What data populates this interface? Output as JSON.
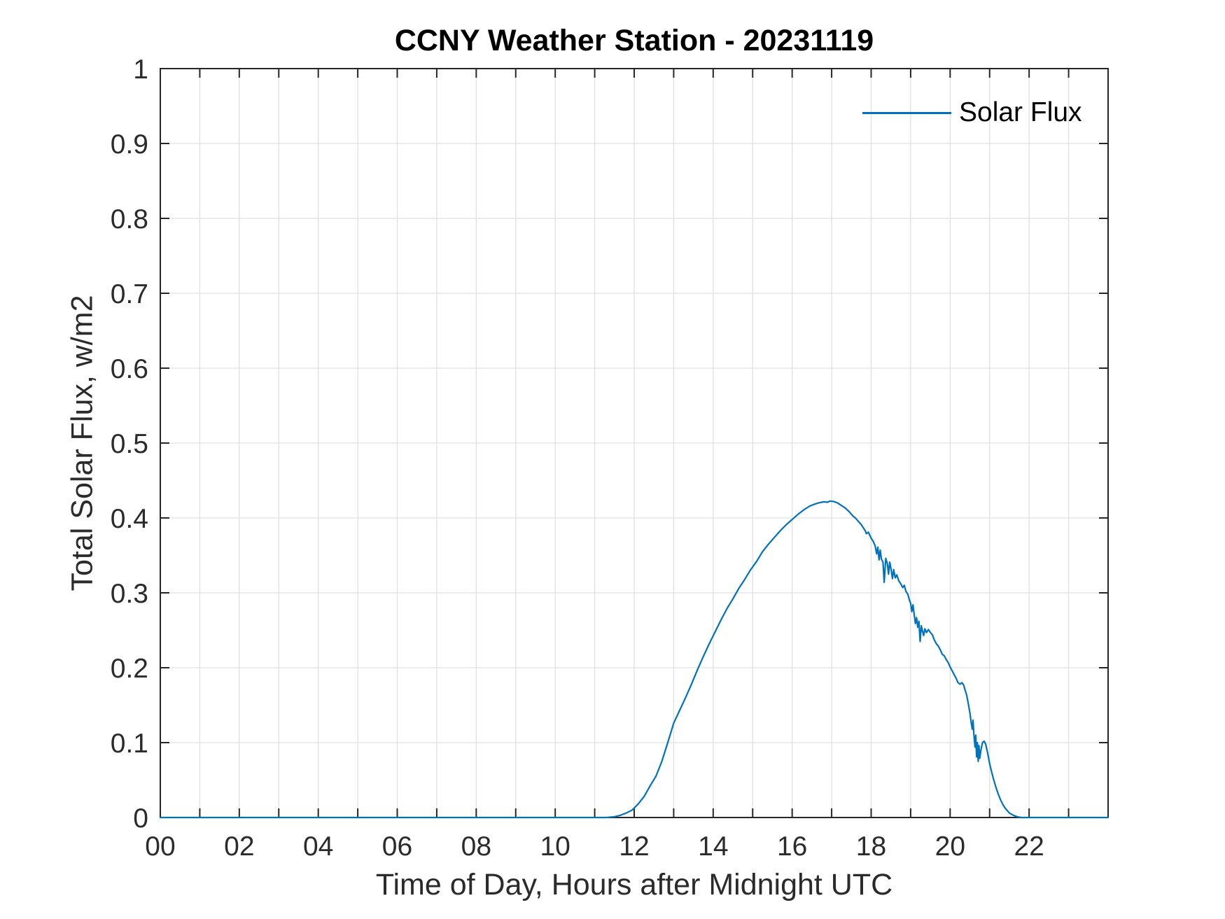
{
  "figure": {
    "background": "#ffffff"
  },
  "chart_data": {
    "type": "line",
    "title": "CCNY Weather Station - 20231119",
    "xlabel": "Time of Day, Hours after Midnight UTC",
    "ylabel": "Total Solar Flux, w/m2",
    "xlim": [
      0,
      24
    ],
    "ylim": [
      0,
      1
    ],
    "grid": true,
    "grid_color": "#e0e0e0",
    "axis_color": "#262626",
    "tick_label_color": "#2b2b2b",
    "line_color": "#0072BD",
    "line_width": 2.2,
    "legend": {
      "position": "northeast",
      "box": false,
      "entries": [
        {
          "label": "Solar Flux",
          "color": "#0072BD"
        }
      ]
    },
    "xtick_positions": [
      0,
      1,
      2,
      3,
      4,
      5,
      6,
      7,
      8,
      9,
      10,
      11,
      12,
      13,
      14,
      15,
      16,
      17,
      18,
      19,
      20,
      21,
      22,
      23
    ],
    "xtick_labels": [
      "00",
      "",
      "02",
      "",
      "04",
      "",
      "06",
      "",
      "08",
      "",
      "10",
      "",
      "12",
      "",
      "14",
      "",
      "16",
      "",
      "18",
      "",
      "20",
      "",
      "22",
      ""
    ],
    "ytick_positions": [
      0,
      0.1,
      0.2,
      0.3,
      0.4,
      0.5,
      0.6,
      0.7,
      0.8,
      0.9,
      1
    ],
    "ytick_labels": [
      "0",
      "0.1",
      "0.2",
      "0.3",
      "0.4",
      "0.5",
      "0.6",
      "0.7",
      "0.8",
      "0.9",
      "1"
    ],
    "series": [
      {
        "name": "Solar Flux",
        "points": [
          [
            0,
            0
          ],
          [
            1,
            0
          ],
          [
            2,
            0
          ],
          [
            3,
            0
          ],
          [
            4,
            0
          ],
          [
            5,
            0
          ],
          [
            6,
            0
          ],
          [
            7,
            0
          ],
          [
            8,
            0
          ],
          [
            9,
            0
          ],
          [
            10,
            0
          ],
          [
            10.5,
            0
          ],
          [
            11,
            0
          ],
          [
            11.3,
            0
          ],
          [
            11.5,
            0.001
          ],
          [
            11.65,
            0.003
          ],
          [
            11.8,
            0.006
          ],
          [
            11.95,
            0.01
          ],
          [
            12.1,
            0.018
          ],
          [
            12.25,
            0.028
          ],
          [
            12.4,
            0.042
          ],
          [
            12.55,
            0.055
          ],
          [
            12.7,
            0.075
          ],
          [
            12.85,
            0.1
          ],
          [
            13,
            0.126
          ],
          [
            13.15,
            0.143
          ],
          [
            13.3,
            0.16
          ],
          [
            13.45,
            0.178
          ],
          [
            13.6,
            0.197
          ],
          [
            13.75,
            0.215
          ],
          [
            13.9,
            0.232
          ],
          [
            14.05,
            0.248
          ],
          [
            14.2,
            0.264
          ],
          [
            14.35,
            0.279
          ],
          [
            14.5,
            0.292
          ],
          [
            14.65,
            0.306
          ],
          [
            14.8,
            0.318
          ],
          [
            14.95,
            0.331
          ],
          [
            15.1,
            0.342
          ],
          [
            15.25,
            0.355
          ],
          [
            15.4,
            0.365
          ],
          [
            15.55,
            0.374
          ],
          [
            15.7,
            0.383
          ],
          [
            15.85,
            0.391
          ],
          [
            16,
            0.398
          ],
          [
            16.15,
            0.405
          ],
          [
            16.3,
            0.411
          ],
          [
            16.45,
            0.416
          ],
          [
            16.6,
            0.419
          ],
          [
            16.7,
            0.4205
          ],
          [
            16.8,
            0.4215
          ],
          [
            16.9,
            0.421
          ],
          [
            16.95,
            0.4225
          ],
          [
            17.05,
            0.422
          ],
          [
            17.15,
            0.42
          ],
          [
            17.25,
            0.4165
          ],
          [
            17.35,
            0.413
          ],
          [
            17.45,
            0.408
          ],
          [
            17.55,
            0.402
          ],
          [
            17.6,
            0.4
          ],
          [
            17.65,
            0.397
          ],
          [
            17.75,
            0.391
          ],
          [
            17.85,
            0.383
          ],
          [
            17.88,
            0.379
          ],
          [
            17.93,
            0.381
          ],
          [
            18,
            0.373
          ],
          [
            18.05,
            0.369
          ],
          [
            18.1,
            0.363
          ],
          [
            18.14,
            0.352
          ],
          [
            18.17,
            0.361
          ],
          [
            18.2,
            0.344
          ],
          [
            18.23,
            0.357
          ],
          [
            18.26,
            0.345
          ],
          [
            18.3,
            0.341
          ],
          [
            18.33,
            0.314
          ],
          [
            18.37,
            0.346
          ],
          [
            18.41,
            0.339
          ],
          [
            18.44,
            0.325
          ],
          [
            18.47,
            0.341
          ],
          [
            18.5,
            0.333
          ],
          [
            18.54,
            0.319
          ],
          [
            18.57,
            0.331
          ],
          [
            18.61,
            0.32
          ],
          [
            18.65,
            0.324
          ],
          [
            18.7,
            0.316
          ],
          [
            18.75,
            0.312
          ],
          [
            18.8,
            0.307
          ],
          [
            18.84,
            0.31
          ],
          [
            18.88,
            0.302
          ],
          [
            18.93,
            0.298
          ],
          [
            18.97,
            0.29
          ],
          [
            19,
            0.286
          ],
          [
            19.03,
            0.275
          ],
          [
            19.06,
            0.284
          ],
          [
            19.09,
            0.271
          ],
          [
            19.12,
            0.259
          ],
          [
            19.15,
            0.267
          ],
          [
            19.18,
            0.254
          ],
          [
            19.21,
            0.262
          ],
          [
            19.24,
            0.235
          ],
          [
            19.27,
            0.256
          ],
          [
            19.3,
            0.249
          ],
          [
            19.33,
            0.243
          ],
          [
            19.36,
            0.252
          ],
          [
            19.4,
            0.247
          ],
          [
            19.45,
            0.251
          ],
          [
            19.5,
            0.247
          ],
          [
            19.55,
            0.244
          ],
          [
            19.6,
            0.237
          ],
          [
            19.65,
            0.232
          ],
          [
            19.7,
            0.229
          ],
          [
            19.75,
            0.224
          ],
          [
            19.8,
            0.218
          ],
          [
            19.85,
            0.216
          ],
          [
            19.9,
            0.211
          ],
          [
            19.95,
            0.207
          ],
          [
            20,
            0.201
          ],
          [
            20.05,
            0.196
          ],
          [
            20.1,
            0.191
          ],
          [
            20.15,
            0.186
          ],
          [
            20.2,
            0.18
          ],
          [
            20.25,
            0.178
          ],
          [
            20.3,
            0.18
          ],
          [
            20.34,
            0.177
          ],
          [
            20.38,
            0.17
          ],
          [
            20.42,
            0.163
          ],
          [
            20.46,
            0.152
          ],
          [
            20.5,
            0.14
          ],
          [
            20.53,
            0.128
          ],
          [
            20.56,
            0.118
          ],
          [
            20.58,
            0.13
          ],
          [
            20.6,
            0.112
          ],
          [
            20.63,
            0.094
          ],
          [
            20.65,
            0.11
          ],
          [
            20.67,
            0.081
          ],
          [
            20.69,
            0.1
          ],
          [
            20.71,
            0.075
          ],
          [
            20.73,
            0.096
          ],
          [
            20.75,
            0.079
          ],
          [
            20.78,
            0.09
          ],
          [
            20.82,
            0.1
          ],
          [
            20.86,
            0.102
          ],
          [
            20.9,
            0.098
          ],
          [
            20.95,
            0.086
          ],
          [
            21,
            0.072
          ],
          [
            21.05,
            0.061
          ],
          [
            21.1,
            0.051
          ],
          [
            21.15,
            0.042
          ],
          [
            21.2,
            0.034
          ],
          [
            21.25,
            0.027
          ],
          [
            21.3,
            0.021
          ],
          [
            21.35,
            0.016
          ],
          [
            21.4,
            0.012
          ],
          [
            21.45,
            0.009
          ],
          [
            21.5,
            0.006
          ],
          [
            21.6,
            0.003
          ],
          [
            21.7,
            0.001
          ],
          [
            21.8,
            0
          ],
          [
            22,
            0
          ],
          [
            22.5,
            0
          ],
          [
            23,
            0
          ],
          [
            23.5,
            0
          ],
          [
            24,
            0
          ]
        ]
      }
    ]
  }
}
